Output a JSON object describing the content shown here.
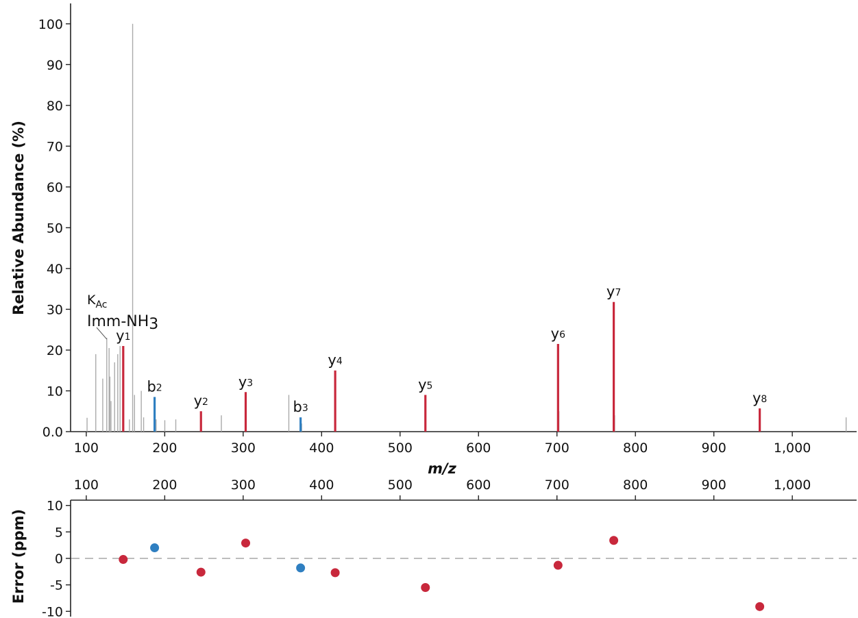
{
  "chart_data": [
    {
      "type": "bar",
      "xlabel": "m/z",
      "ylabel": "Relative Abundance (%)",
      "xlim": [
        80,
        1082
      ],
      "ylim": [
        0,
        105
      ],
      "x_ticks": [
        100,
        200,
        300,
        400,
        500,
        600,
        700,
        800,
        900,
        1000
      ],
      "x_tick_labels": [
        "100",
        "200",
        "300",
        "400",
        "500",
        "600",
        "700",
        "800",
        "900",
        "1,000"
      ],
      "y_ticks": [
        0,
        10,
        20,
        30,
        40,
        50,
        60,
        70,
        80,
        90,
        100
      ],
      "y_tick_labels": [
        "0.0",
        "10",
        "20",
        "30",
        "40",
        "50",
        "60",
        "70",
        "80",
        "90",
        "100"
      ],
      "series": [
        {
          "name": "y",
          "color": "#c8283c",
          "peaks": [
            {
              "label": "y",
              "sub": "1",
              "mz": 147.1,
              "value": 21
            },
            {
              "label": "y",
              "sub": "2",
              "mz": 246.2,
              "value": 5
            },
            {
              "label": "y",
              "sub": "3",
              "mz": 303.2,
              "value": 9.7
            },
            {
              "label": "y",
              "sub": "4",
              "mz": 417.3,
              "value": 15
            },
            {
              "label": "y",
              "sub": "5",
              "mz": 532.3,
              "value": 9
            },
            {
              "label": "y",
              "sub": "6",
              "mz": 701.4,
              "value": 21.5
            },
            {
              "label": "y",
              "sub": "7",
              "mz": 772.4,
              "value": 31.8
            },
            {
              "label": "y",
              "sub": "8",
              "mz": 958.5,
              "value": 5.7
            }
          ]
        },
        {
          "name": "b",
          "color": "#2f7fc1",
          "peaks": [
            {
              "label": "b",
              "sub": "2",
              "mz": 187.1,
              "value": 8.5
            },
            {
              "label": "b",
              "sub": "3",
              "mz": 373.2,
              "value": 3.5
            }
          ]
        },
        {
          "name": "unassigned",
          "color": "#aaaaaa",
          "peaks": [
            {
              "mz": 101.0,
              "value": 3.4
            },
            {
              "mz": 112.1,
              "value": 19
            },
            {
              "mz": 121.0,
              "value": 13
            },
            {
              "mz": 126.1,
              "value": 23
            },
            {
              "mz": 129.1,
              "value": 20.5
            },
            {
              "mz": 130.1,
              "value": 13.5
            },
            {
              "mz": 131.5,
              "value": 7.5
            },
            {
              "mz": 136.1,
              "value": 17
            },
            {
              "mz": 140.1,
              "value": 19
            },
            {
              "mz": 143.1,
              "value": 21
            },
            {
              "mz": 155.0,
              "value": 3
            },
            {
              "mz": 159.1,
              "value": 100
            },
            {
              "mz": 161.5,
              "value": 9
            },
            {
              "mz": 170.1,
              "value": 10
            },
            {
              "mz": 173.1,
              "value": 3.5
            },
            {
              "mz": 189.0,
              "value": 3
            },
            {
              "mz": 200.1,
              "value": 2.8
            },
            {
              "mz": 214.1,
              "value": 3
            },
            {
              "mz": 272.2,
              "value": 4
            },
            {
              "mz": 358.2,
              "value": 9
            },
            {
              "mz": 374.5,
              "value": 2
            },
            {
              "mz": 702.5,
              "value": 5
            },
            {
              "mz": 773.5,
              "value": 4
            },
            {
              "mz": 1068.6,
              "value": 3.5
            }
          ]
        }
      ],
      "annotation": {
        "line1_main": "K",
        "line1_sub": "Ac",
        "line2_main": "Imm-NH",
        "line2_sub": "3",
        "target_mz": 126.1,
        "target_value": 23
      }
    },
    {
      "type": "scatter",
      "ylabel": "Error (ppm)",
      "xlim": [
        80,
        1082
      ],
      "ylim": [
        -11,
        11
      ],
      "x_ticks": [
        100,
        200,
        300,
        400,
        500,
        600,
        700,
        800,
        900,
        1000
      ],
      "x_tick_labels": [
        "100",
        "200",
        "300",
        "400",
        "500",
        "600",
        "700",
        "800",
        "900",
        "1,000"
      ],
      "y_ticks": [
        10,
        5,
        0,
        -5,
        -10
      ],
      "y_tick_labels": [
        "10",
        "5",
        "0",
        "-5",
        "-10"
      ],
      "reference_line": 0,
      "series": [
        {
          "name": "y",
          "color": "#c8283c",
          "points": [
            {
              "x": 147.1,
              "y": -0.2
            },
            {
              "x": 246.2,
              "y": -2.6
            },
            {
              "x": 303.2,
              "y": 2.9
            },
            {
              "x": 417.3,
              "y": -2.7
            },
            {
              "x": 532.3,
              "y": -5.5
            },
            {
              "x": 701.4,
              "y": -1.3
            },
            {
              "x": 772.4,
              "y": 3.4
            },
            {
              "x": 958.5,
              "y": -9.1
            }
          ]
        },
        {
          "name": "b",
          "color": "#2f7fc1",
          "points": [
            {
              "x": 187.1,
              "y": 2.0
            },
            {
              "x": 373.2,
              "y": -1.8
            }
          ]
        }
      ]
    }
  ]
}
